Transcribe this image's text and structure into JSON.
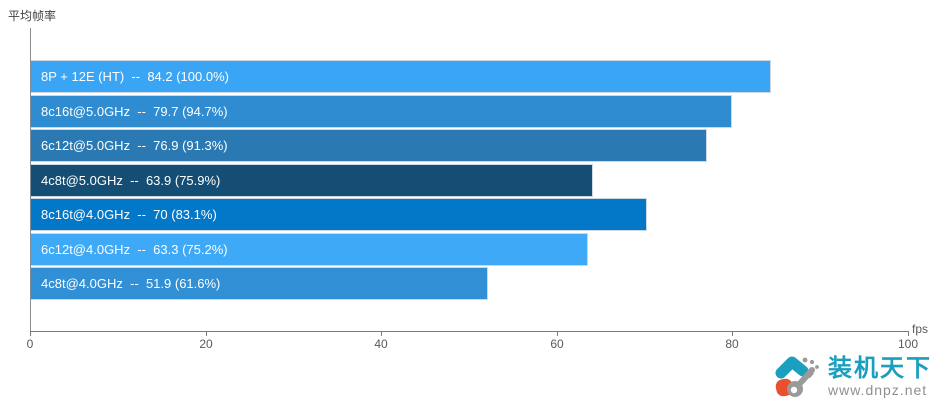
{
  "title": "平均帧率",
  "chart_data": {
    "type": "bar",
    "orientation": "horizontal",
    "title": "平均帧率",
    "xlabel": "fps",
    "xlim": [
      0,
      100
    ],
    "x_ticks": [
      0,
      20,
      40,
      60,
      80,
      100
    ],
    "grid": false,
    "legend": false,
    "categories": [
      "8P + 12E (HT)",
      "8c16t@5.0GHz",
      "6c12t@5.0GHz",
      "4c8t@5.0GHz",
      "8c16t@4.0GHz",
      "6c12t@4.0GHz",
      "4c8t@4.0GHz"
    ],
    "values": [
      84.2,
      79.7,
      76.9,
      63.9,
      70,
      63.3,
      51.9
    ],
    "percent_of_best": [
      "100.0%",
      "94.7%",
      "91.3%",
      "75.9%",
      "83.1%",
      "75.2%",
      "61.6%"
    ],
    "bars": [
      {
        "label": "8P + 12E (HT)",
        "value": 84.2,
        "display": "8P + 12E (HT)  --  84.2 (100.0%)",
        "color": "#3AA5F4"
      },
      {
        "label": "8c16t@5.0GHz",
        "value": 79.7,
        "display": "8c16t@5.0GHz  --  79.7 (94.7%)",
        "color": "#2F8CD1"
      },
      {
        "label": "6c12t@5.0GHz",
        "value": 76.9,
        "display": "6c12t@5.0GHz  --  76.9 (91.3%)",
        "color": "#2B79B2"
      },
      {
        "label": "4c8t@5.0GHz",
        "value": 63.9,
        "display": "4c8t@5.0GHz  --  63.9 (75.9%)",
        "color": "#154E74"
      },
      {
        "label": "8c16t@4.0GHz",
        "value": 70,
        "display": "8c16t@4.0GHz  --  70 (83.1%)",
        "color": "#0378C9"
      },
      {
        "label": "6c12t@4.0GHz",
        "value": 63.3,
        "display": "6c12t@4.0GHz  --  63.3 (75.2%)",
        "color": "#3EA9F6"
      },
      {
        "label": "4c8t@4.0GHz",
        "value": 51.9,
        "display": "4c8t@4.0GHz  --  51.9 (61.6%)",
        "color": "#3190D5"
      }
    ]
  },
  "axis": {
    "unit_label": "fps",
    "ticks": [
      "0",
      "20",
      "40",
      "60",
      "80",
      "100"
    ],
    "tick_values": [
      0,
      20,
      40,
      60,
      80,
      100
    ]
  },
  "watermark": {
    "brand": "装机天下",
    "url": "www.dnpz.net",
    "brand_color": "#1A9FBE",
    "accent_orange": "#E8502F",
    "key_gray": "#9A9A9A"
  },
  "layout_colors": {
    "background": "#FFFFFF",
    "axis_line": "#7A7A7A",
    "tick_text": "#595959",
    "title_text": "#404040",
    "bar_text": "#FFFFFF"
  }
}
